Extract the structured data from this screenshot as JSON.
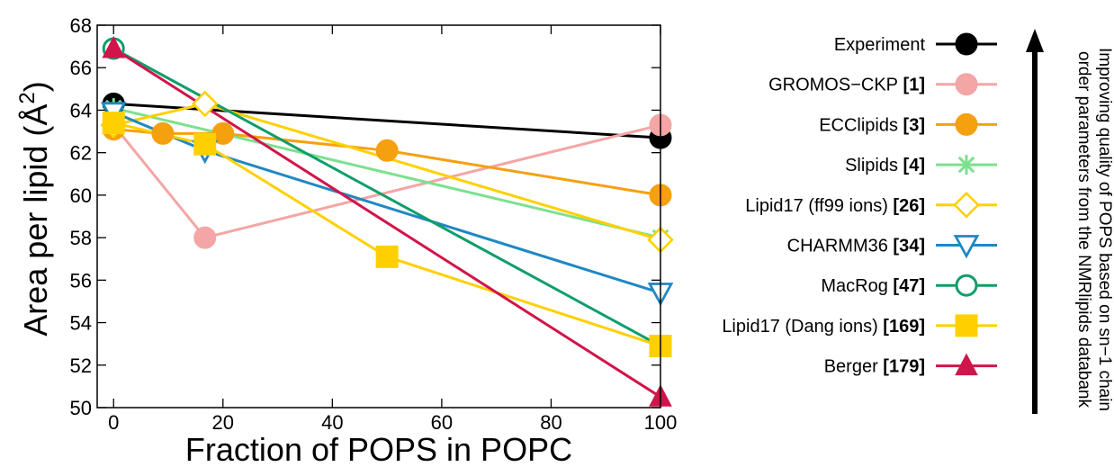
{
  "chart_data": {
    "type": "line",
    "xlabel": "Fraction of POPS in POPC",
    "ylabel_main": "Area per lipid (Å",
    "ylabel_sup": "2",
    "ylabel_close": ")",
    "xlim": [
      -3,
      100
    ],
    "ylim": [
      50,
      68
    ],
    "xticks": [
      0,
      20,
      40,
      60,
      80,
      100
    ],
    "yticks": [
      50,
      52,
      54,
      56,
      58,
      60,
      62,
      64,
      66,
      68
    ],
    "legend_position": "right",
    "annotation_line1": "Improving quality of POPS based on sn−1 chain",
    "annotation_line2": "order parameters from the NMRlipids databank",
    "series": [
      {
        "name": "Experiment",
        "ref": "",
        "color": "#000000",
        "marker": "circle",
        "filled": true,
        "points": [
          [
            0,
            64.3
          ],
          [
            100,
            62.7
          ]
        ]
      },
      {
        "name": "GROMOS−CKP",
        "ref": "[1]",
        "color": "#f4a5a5",
        "marker": "circle",
        "filled": true,
        "points": [
          [
            0,
            63.3
          ],
          [
            16.7,
            58.0
          ],
          [
            100,
            63.3
          ]
        ]
      },
      {
        "name": "ECClipids",
        "ref": "[3]",
        "color": "#f5a00f",
        "marker": "circle",
        "filled": true,
        "points": [
          [
            0,
            63.1
          ],
          [
            9,
            62.9
          ],
          [
            20,
            62.9
          ],
          [
            50,
            62.1
          ],
          [
            100,
            60.0
          ]
        ]
      },
      {
        "name": "Slipids",
        "ref": "[4]",
        "color": "#7ee08f",
        "marker": "star",
        "filled": false,
        "points": [
          [
            0,
            64.1
          ],
          [
            100,
            58.0
          ]
        ]
      },
      {
        "name": "Lipid17 (ff99 ions)",
        "ref": "[26]",
        "color": "#ffd000",
        "marker": "diamond",
        "filled": false,
        "points": [
          [
            0,
            63.3
          ],
          [
            16.7,
            64.3
          ],
          [
            100,
            57.9
          ]
        ]
      },
      {
        "name": "CHARMM36",
        "ref": "[34]",
        "color": "#1f88c4",
        "marker": "triangle-down",
        "filled": false,
        "points": [
          [
            0,
            63.9
          ],
          [
            16.7,
            62.1
          ],
          [
            100,
            55.4
          ]
        ]
      },
      {
        "name": "MacRog",
        "ref": "[47]",
        "color": "#0f9e6a",
        "marker": "circle",
        "filled": false,
        "points": [
          [
            0,
            66.9
          ],
          [
            100,
            52.9
          ]
        ]
      },
      {
        "name": "Lipid17 (Dang ions)",
        "ref": "[169]",
        "color": "#ffd000",
        "marker": "square",
        "filled": true,
        "points": [
          [
            0,
            63.4
          ],
          [
            16.7,
            62.4
          ],
          [
            50,
            57.1
          ],
          [
            100,
            52.9
          ]
        ]
      },
      {
        "name": "Berger",
        "ref": "[179]",
        "color": "#d1144a",
        "marker": "triangle-up",
        "filled": true,
        "points": [
          [
            0,
            66.9
          ],
          [
            100,
            50.5
          ]
        ]
      }
    ]
  }
}
